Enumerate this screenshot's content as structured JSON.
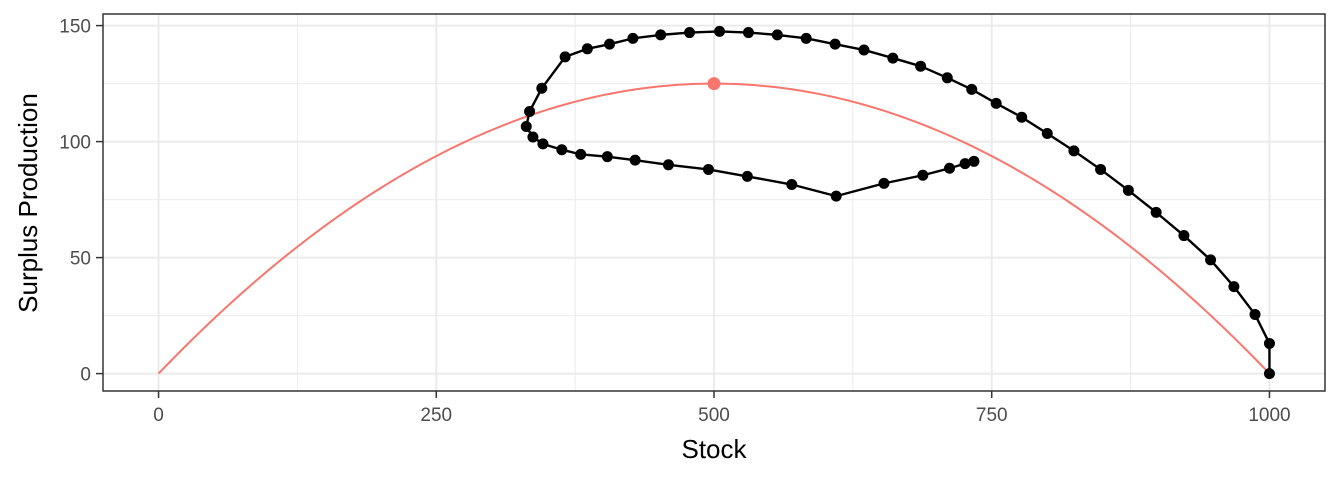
{
  "chart_data": {
    "type": "line",
    "title": "",
    "xlabel": "Stock",
    "ylabel": "Surplus Production",
    "xlim": [
      -50,
      1050
    ],
    "ylim": [
      -7.5,
      155
    ],
    "xticks": [
      0,
      250,
      500,
      750,
      1000
    ],
    "yticks": [
      0,
      50,
      100,
      150
    ],
    "grid": true,
    "legend": "none",
    "series": [
      {
        "kind": "curve",
        "color": "#F8766D",
        "r": 0.5,
        "K": 1000,
        "x_range": [
          0,
          1000
        ],
        "peak": {
          "x": 500,
          "y": 125
        }
      },
      {
        "kind": "trajectory",
        "color": "#000000",
        "points": [
          [
            1000,
            0
          ],
          [
            1000,
            13
          ],
          [
            987,
            25.5
          ],
          [
            968,
            37.5
          ],
          [
            947,
            49
          ],
          [
            923,
            59.5
          ],
          [
            898,
            69.5
          ],
          [
            873,
            79
          ],
          [
            848,
            88
          ],
          [
            824,
            96
          ],
          [
            800,
            103.5
          ],
          [
            777,
            110.5
          ],
          [
            754,
            116.5
          ],
          [
            732,
            122.5
          ],
          [
            710,
            127.5
          ],
          [
            686,
            132.5
          ],
          [
            661,
            136
          ],
          [
            635,
            139.5
          ],
          [
            609,
            142
          ],
          [
            583,
            144.5
          ],
          [
            557,
            146
          ],
          [
            531,
            147
          ],
          [
            505,
            147.5
          ],
          [
            478,
            147
          ],
          [
            452,
            146
          ],
          [
            427,
            144.5
          ],
          [
            406,
            142
          ],
          [
            386,
            140
          ],
          [
            366,
            136.5
          ],
          [
            345,
            123
          ],
          [
            334,
            113
          ],
          [
            331,
            106.5
          ],
          [
            337,
            102
          ],
          [
            346,
            99
          ],
          [
            363,
            96.5
          ],
          [
            380,
            94.5
          ],
          [
            404,
            93.5
          ],
          [
            429,
            92
          ],
          [
            459,
            90
          ],
          [
            495,
            88
          ],
          [
            530,
            85
          ],
          [
            570,
            81.5
          ],
          [
            610,
            76.5
          ],
          [
            653,
            82
          ],
          [
            688,
            85.5
          ],
          [
            712,
            88.5
          ],
          [
            726,
            90.5
          ],
          [
            734,
            91.5
          ]
        ]
      }
    ]
  }
}
